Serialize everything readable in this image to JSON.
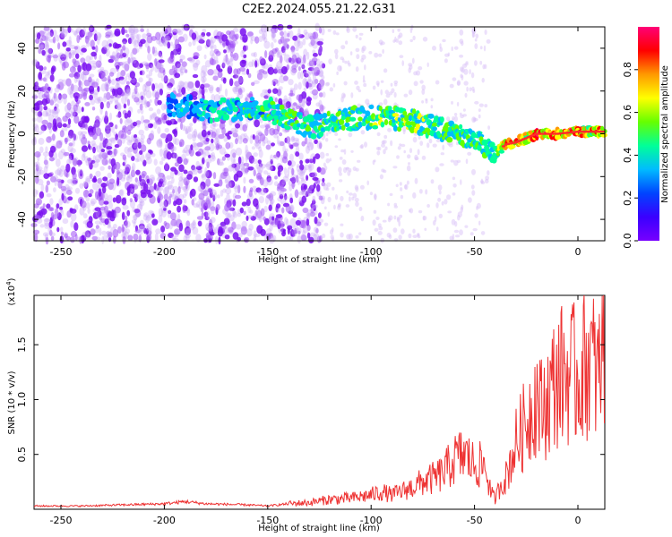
{
  "title": "C2E2.2024.055.21.22.G31",
  "chart_data": [
    {
      "type": "heatmap",
      "xlabel": "Height of straight line (km)",
      "ylabel": "Frequency (Hz)",
      "xlim": [
        -263,
        13
      ],
      "ylim": [
        -50,
        50
      ],
      "xticks": [
        "-250",
        "-200",
        "-150",
        "-100",
        "-50",
        "0"
      ],
      "yticks": [
        "40",
        "20",
        "0",
        "-20",
        "-40"
      ],
      "colorbar": {
        "label": "Normalized spectral amplitude",
        "range": [
          0,
          1
        ],
        "ticks": [
          "0.0",
          "0.2",
          "0.4",
          "0.6",
          "0.8"
        ]
      },
      "ridge": {
        "x": [
          -198,
          -180,
          -150,
          -140,
          -130,
          -110,
          -95,
          -80,
          -65,
          -50,
          -40,
          -35,
          -30,
          -25,
          -20,
          -10,
          0,
          13
        ],
        "y": [
          14,
          11,
          12,
          6,
          3,
          7,
          8,
          6,
          2,
          -3,
          -9,
          -5,
          -4,
          -2,
          0,
          0,
          1,
          1
        ],
        "amplitude": [
          0.3,
          0.4,
          0.45,
          0.5,
          0.45,
          0.5,
          0.55,
          0.55,
          0.5,
          0.5,
          0.45,
          0.85,
          0.8,
          0.7,
          0.85,
          0.85,
          0.8,
          0.75
        ]
      }
    },
    {
      "type": "line",
      "xlabel": "Height of straight line (km)",
      "ylabel": "SNR (10 * v/v)",
      "scale_label": "(x10",
      "scale_exp": "4",
      "xlim": [
        -263,
        13
      ],
      "ylim": [
        0,
        19500
      ],
      "xticks": [
        "-250",
        "-200",
        "-150",
        "-100",
        "-50",
        "0"
      ],
      "yticks": [
        "0.5",
        "1.0",
        "1.5"
      ],
      "series": [
        {
          "color": "#ee3333",
          "x": [
            -263,
            -240,
            -220,
            -200,
            -190,
            -180,
            -160,
            -150,
            -140,
            -130,
            -120,
            -110,
            -100,
            -95,
            -90,
            -80,
            -75,
            -70,
            -65,
            -60,
            -55,
            -50,
            -45,
            -42,
            -40,
            -37,
            -35,
            -30,
            -25,
            -20,
            -18,
            -15,
            -10,
            -5,
            0,
            5,
            10,
            13
          ],
          "y": [
            300,
            300,
            400,
            500,
            700,
            500,
            400,
            300,
            500,
            600,
            900,
            1000,
            1300,
            1600,
            1300,
            2000,
            2500,
            2800,
            3300,
            4500,
            5000,
            4000,
            4000,
            1500,
            900,
            2500,
            2800,
            6000,
            8000,
            10500,
            9000,
            10000,
            12000,
            12500,
            12000,
            14000,
            12000,
            16000
          ]
        }
      ]
    }
  ],
  "colors": {
    "line": "#ee3333",
    "cmap": [
      "#7700ff",
      "#3a00ff",
      "#0044ff",
      "#00bbff",
      "#00ff99",
      "#66ff00",
      "#ffff00",
      "#ff9900",
      "#ff0000",
      "#ff0077"
    ]
  }
}
